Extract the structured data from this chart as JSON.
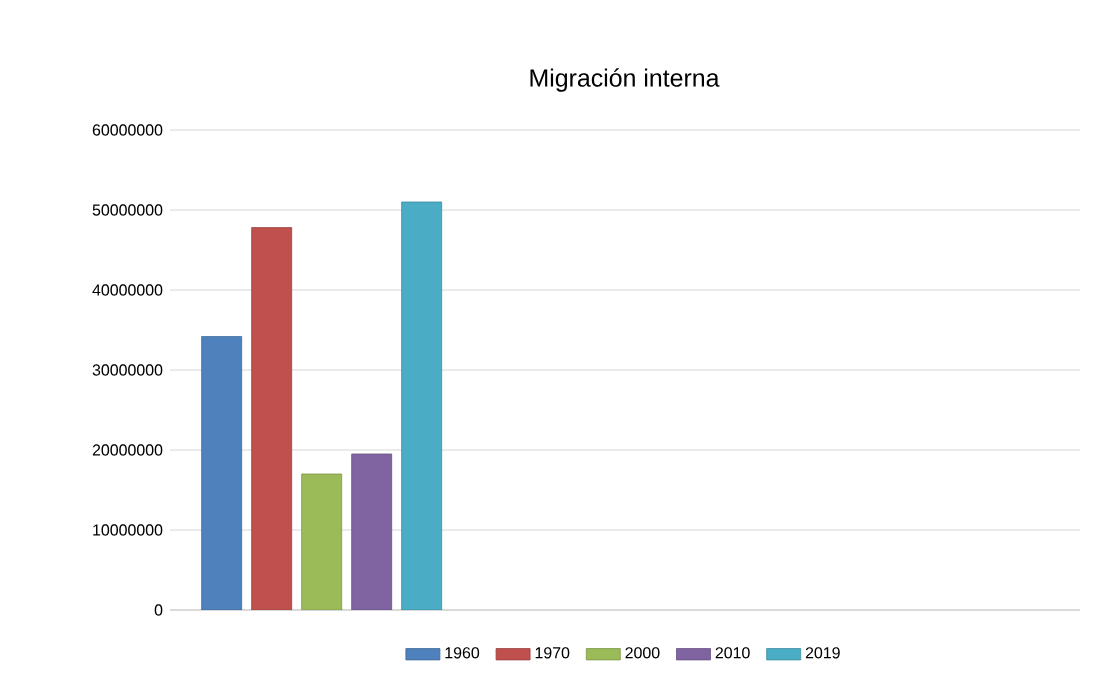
{
  "chart_data": {
    "type": "bar",
    "title": "Migración interna",
    "categories": [
      null,
      null,
      null
    ],
    "series": [
      {
        "name": "1960",
        "color": "#4f81bd",
        "values": [
          34200000,
          null,
          null
        ]
      },
      {
        "name": "1970",
        "color": "#c0504d",
        "values": [
          47800000,
          null,
          null
        ]
      },
      {
        "name": "2000",
        "color": "#9bbb59",
        "values": [
          17000000,
          null,
          null
        ]
      },
      {
        "name": "2010",
        "color": "#8064a2",
        "values": [
          19500000,
          null,
          null
        ]
      },
      {
        "name": "2019",
        "color": "#4bacc6",
        "values": [
          51000000,
          null,
          null
        ]
      }
    ],
    "ylim": [
      0,
      60000000
    ],
    "yticks": [
      0,
      10000000,
      20000000,
      30000000,
      40000000,
      50000000,
      60000000
    ],
    "grid": "y",
    "legend": "bottom"
  }
}
